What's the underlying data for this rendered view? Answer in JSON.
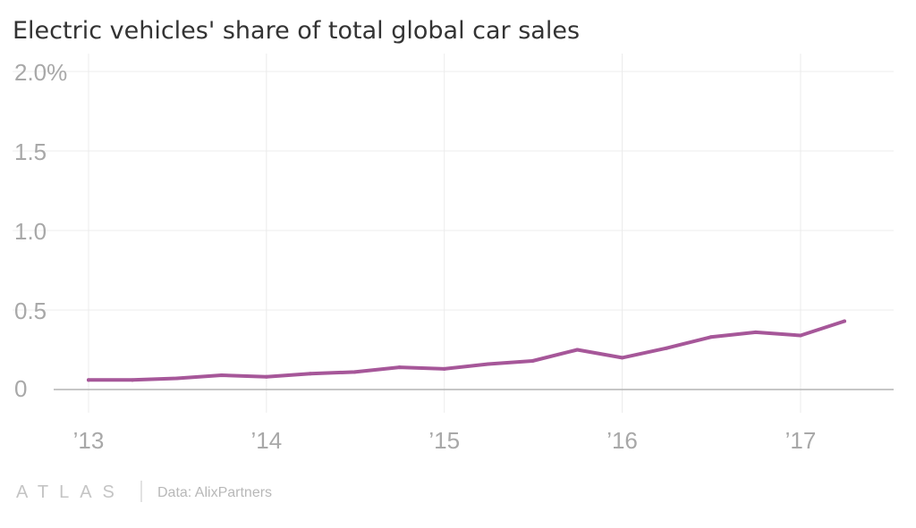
{
  "chart_data": {
    "type": "line",
    "title": "Electric vehicles' share of total global car sales",
    "xlabel": "",
    "ylabel": "",
    "y_unit": "%",
    "ylim": [
      0,
      2.0
    ],
    "yticks": [
      {
        "value": 0,
        "label": "0"
      },
      {
        "value": 0.5,
        "label": "0.5"
      },
      {
        "value": 1.0,
        "label": "1.0"
      },
      {
        "value": 1.5,
        "label": "1.5"
      },
      {
        "value": 2.0,
        "label": "2.0%"
      }
    ],
    "xlim": [
      "2013-01-01",
      "2017-06-30"
    ],
    "xticks": [
      {
        "value": "2013-01-01",
        "label": "’13"
      },
      {
        "value": "2014-01-01",
        "label": "’14"
      },
      {
        "value": "2015-01-01",
        "label": "’15"
      },
      {
        "value": "2016-01-01",
        "label": "’16"
      },
      {
        "value": "2017-01-01",
        "label": "’17"
      }
    ],
    "grid": true,
    "color": "#a65799",
    "series": [
      {
        "x": [
          "2013-01-01",
          "2013-04-01",
          "2013-07-01",
          "2013-10-01",
          "2014-01-01",
          "2014-04-01",
          "2014-07-01",
          "2014-10-01",
          "2015-01-01",
          "2015-04-01",
          "2015-07-01",
          "2015-10-01",
          "2016-01-01",
          "2016-04-01",
          "2016-07-01",
          "2016-10-01",
          "2017-01-01",
          "2017-04-01"
        ],
        "values": [
          0.06,
          0.06,
          0.07,
          0.09,
          0.08,
          0.1,
          0.11,
          0.14,
          0.13,
          0.16,
          0.18,
          0.25,
          0.2,
          0.26,
          0.33,
          0.36,
          0.34,
          0.43
        ]
      }
    ]
  },
  "footer": {
    "brand": "ATLAS",
    "source": "Data: AlixPartners"
  }
}
